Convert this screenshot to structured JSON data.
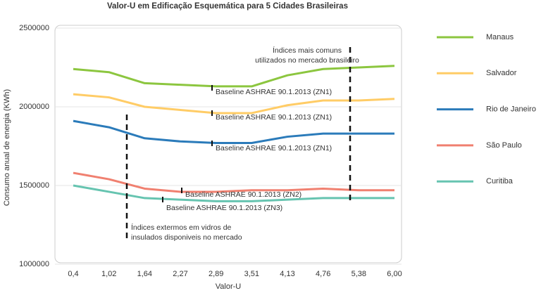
{
  "chart_data": {
    "type": "line",
    "title": "Valor-U em Edificação Esquemática para 5 Cidades Brasileiras",
    "x_label": "Valor-U",
    "y_label": "Consumo anual de energia (KWh)",
    "categories": [
      "0,4",
      "1,02",
      "1,64",
      "2,27",
      "2,89",
      "3,51",
      "4,13",
      "4,76",
      "5,38",
      "6,00"
    ],
    "series": [
      {
        "name": "Manaus",
        "color": "#8cc63f",
        "values": [
          2240000,
          2220000,
          2150000,
          2140000,
          2130000,
          2130000,
          2200000,
          2240000,
          2250000,
          2260000
        ]
      },
      {
        "name": "Salvador",
        "color": "#ffcc66",
        "values": [
          2080000,
          2060000,
          2000000,
          1980000,
          1960000,
          1960000,
          2010000,
          2040000,
          2040000,
          2050000
        ]
      },
      {
        "name": "Rio de Janeiro",
        "color": "#2b7bba",
        "values": [
          1910000,
          1870000,
          1800000,
          1780000,
          1770000,
          1770000,
          1810000,
          1830000,
          1830000,
          1830000
        ]
      },
      {
        "name": "São Paulo",
        "color": "#f08070",
        "values": [
          1580000,
          1540000,
          1480000,
          1460000,
          1460000,
          1470000,
          1470000,
          1480000,
          1470000,
          1470000
        ]
      },
      {
        "name": "Curitiba",
        "color": "#66c4b0",
        "values": [
          1500000,
          1460000,
          1420000,
          1410000,
          1400000,
          1400000,
          1410000,
          1420000,
          1420000,
          1420000
        ]
      }
    ],
    "ylim": [
      1000000,
      2500000
    ],
    "yticks": [
      1000000,
      1500000,
      2000000,
      2500000
    ],
    "grid": true,
    "legend": "right",
    "annotations": [
      "Índices mais comuns",
      "utilizados no mercado brasileiro",
      "Baseline ASHRAE 90.1.2013 (ZN1)",
      "Baseline ASHRAE 90.1.2013 (ZN1)",
      "Baseline ASHRAE 90.1.2013 (ZN1)",
      "Baseline ASHRAE 90.1.2013 (ZN2)",
      "Baseline ASHRAE 90.1.2013 (ZN3)",
      "Índices extermos em vidros de",
      "insulados disponiveis no mercado"
    ]
  }
}
